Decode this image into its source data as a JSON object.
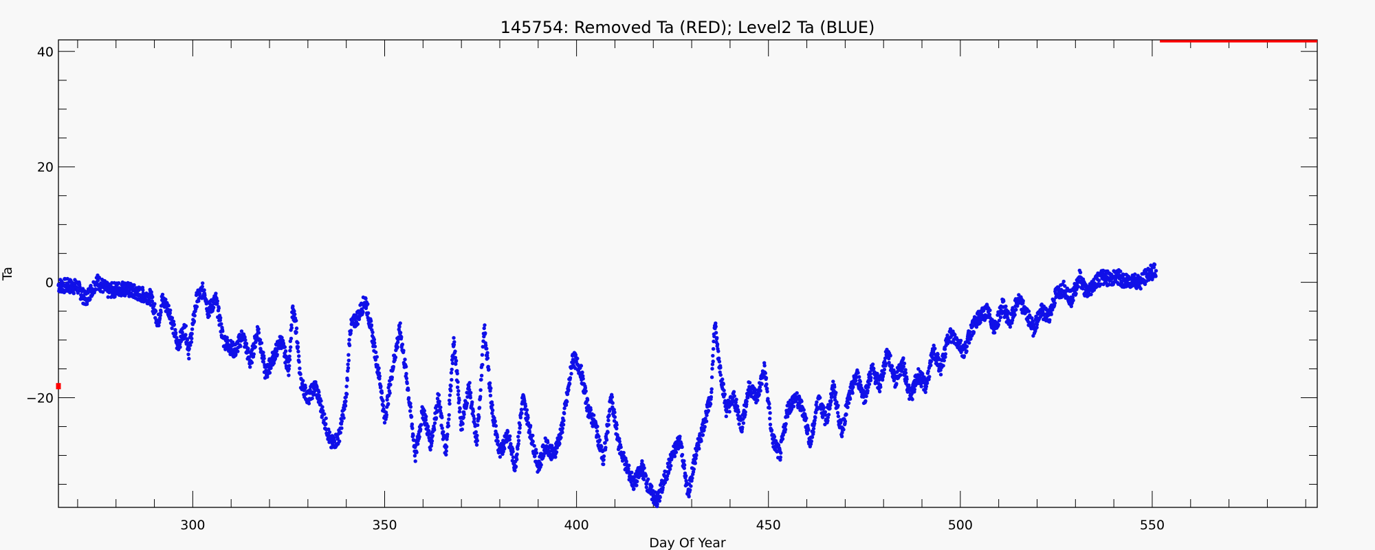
{
  "chart_data": {
    "type": "scatter",
    "title": "145754: Removed Ta (RED); Level2 Ta (BLUE)",
    "xlabel": "Day Of Year",
    "ylabel": "Ta",
    "xlim": [
      265,
      593
    ],
    "ylim": [
      -39,
      42
    ],
    "x_ticks": [
      300,
      350,
      400,
      450,
      500,
      550
    ],
    "y_ticks": [
      40,
      20,
      0,
      -20
    ],
    "x_minor_step": 10,
    "y_minor_step": 5,
    "grid": false,
    "legend": "none",
    "series": [
      {
        "name": "Level2 Ta (BLUE)",
        "color": "#1010e8",
        "points": [
          [
            265,
            -0.5
          ],
          [
            270,
            -0.8
          ],
          [
            272,
            -3
          ],
          [
            275,
            0.2
          ],
          [
            278,
            -1.5
          ],
          [
            282,
            -1
          ],
          [
            286,
            -2
          ],
          [
            289,
            -2.5
          ],
          [
            291,
            -7
          ],
          [
            292,
            -3
          ],
          [
            294,
            -5
          ],
          [
            296,
            -11
          ],
          [
            298,
            -8
          ],
          [
            299,
            -12
          ],
          [
            301,
            -3
          ],
          [
            303,
            -1
          ],
          [
            304,
            -5
          ],
          [
            306,
            -3
          ],
          [
            308,
            -10
          ],
          [
            311,
            -12
          ],
          [
            313,
            -9
          ],
          [
            315,
            -14
          ],
          [
            317,
            -8
          ],
          [
            319,
            -16
          ],
          [
            321,
            -13
          ],
          [
            323,
            -10
          ],
          [
            325,
            -15
          ],
          [
            326,
            -5
          ],
          [
            327,
            -8
          ],
          [
            328,
            -17
          ],
          [
            330,
            -20
          ],
          [
            332,
            -18
          ],
          [
            334,
            -23
          ],
          [
            336,
            -28
          ],
          [
            338,
            -27
          ],
          [
            340,
            -20
          ],
          [
            341,
            -8
          ],
          [
            343,
            -6
          ],
          [
            345,
            -3
          ],
          [
            347,
            -10
          ],
          [
            349,
            -18
          ],
          [
            350,
            -24
          ],
          [
            352,
            -15
          ],
          [
            354,
            -8
          ],
          [
            356,
            -18
          ],
          [
            358,
            -30
          ],
          [
            360,
            -22
          ],
          [
            362,
            -28
          ],
          [
            364,
            -20
          ],
          [
            366,
            -30
          ],
          [
            368,
            -10
          ],
          [
            370,
            -25
          ],
          [
            372,
            -18
          ],
          [
            374,
            -28
          ],
          [
            376,
            -8
          ],
          [
            378,
            -22
          ],
          [
            380,
            -30
          ],
          [
            382,
            -26
          ],
          [
            384,
            -32
          ],
          [
            386,
            -20
          ],
          [
            388,
            -26
          ],
          [
            390,
            -32
          ],
          [
            392,
            -28
          ],
          [
            394,
            -30
          ],
          [
            396,
            -26
          ],
          [
            398,
            -18
          ],
          [
            399,
            -13
          ],
          [
            401,
            -15
          ],
          [
            403,
            -22
          ],
          [
            405,
            -25
          ],
          [
            407,
            -31
          ],
          [
            409,
            -20
          ],
          [
            411,
            -28
          ],
          [
            413,
            -32
          ],
          [
            415,
            -35
          ],
          [
            417,
            -32
          ],
          [
            419,
            -36
          ],
          [
            421,
            -38
          ],
          [
            423,
            -34
          ],
          [
            425,
            -30
          ],
          [
            427,
            -27
          ],
          [
            429,
            -37
          ],
          [
            431,
            -30
          ],
          [
            433,
            -25
          ],
          [
            435,
            -20
          ],
          [
            436,
            -7
          ],
          [
            437,
            -13
          ],
          [
            439,
            -22
          ],
          [
            441,
            -20
          ],
          [
            443,
            -25
          ],
          [
            445,
            -18
          ],
          [
            447,
            -20
          ],
          [
            449,
            -15
          ],
          [
            451,
            -27
          ],
          [
            453,
            -30
          ],
          [
            455,
            -22
          ],
          [
            457,
            -20
          ],
          [
            459,
            -22
          ],
          [
            461,
            -28
          ],
          [
            463,
            -20
          ],
          [
            465,
            -24
          ],
          [
            467,
            -18
          ],
          [
            469,
            -26
          ],
          [
            471,
            -20
          ],
          [
            473,
            -16
          ],
          [
            475,
            -20
          ],
          [
            477,
            -15
          ],
          [
            479,
            -18
          ],
          [
            481,
            -12
          ],
          [
            483,
            -17
          ],
          [
            485,
            -14
          ],
          [
            487,
            -20
          ],
          [
            489,
            -16
          ],
          [
            491,
            -18
          ],
          [
            493,
            -12
          ],
          [
            495,
            -15
          ],
          [
            497,
            -9
          ],
          [
            499,
            -10
          ],
          [
            501,
            -12
          ],
          [
            503,
            -8
          ],
          [
            505,
            -6
          ],
          [
            507,
            -5
          ],
          [
            509,
            -8
          ],
          [
            511,
            -4
          ],
          [
            513,
            -7
          ],
          [
            515,
            -3
          ],
          [
            517,
            -5
          ],
          [
            519,
            -8
          ],
          [
            521,
            -5
          ],
          [
            523,
            -6
          ],
          [
            525,
            -2
          ],
          [
            527,
            -1
          ],
          [
            529,
            -3
          ],
          [
            531,
            1
          ],
          [
            533,
            -2
          ],
          [
            535,
            0
          ],
          [
            537,
            1
          ],
          [
            539,
            0.5
          ],
          [
            541,
            1
          ],
          [
            543,
            0
          ],
          [
            545,
            0.5
          ],
          [
            547,
            0
          ],
          [
            549,
            1.5
          ],
          [
            551,
            2
          ]
        ]
      },
      {
        "name": "Removed Ta (RED)",
        "color": "#ff0000",
        "points": [
          [
            265,
            -18
          ],
          [
            552,
            42
          ],
          [
            593,
            42
          ]
        ]
      }
    ]
  }
}
